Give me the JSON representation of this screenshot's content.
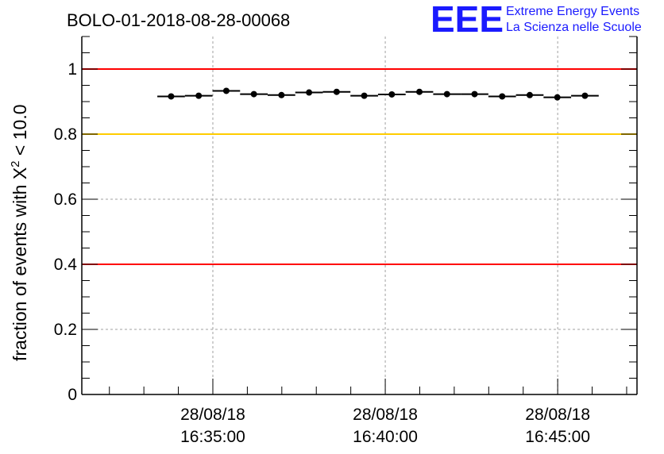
{
  "chart_data": {
    "type": "scatter",
    "title": "BOLO-01-2018-08-28-00068",
    "ylabel": {
      "prefix": "fraction of events with ",
      "symbol": "X",
      "superscript": "2",
      "suffix": " < 10.0"
    },
    "xlabel": "",
    "ylim": [
      0,
      1.1
    ],
    "xlim_minutes": [
      -3.8,
      12.3
    ],
    "grid": true,
    "x_ticks": [
      {
        "minute": 0,
        "date": "28/08/18",
        "time": "16:35:00"
      },
      {
        "minute": 5,
        "date": "28/08/18",
        "time": "16:40:00"
      },
      {
        "minute": 10,
        "date": "28/08/18",
        "time": "16:45:00"
      }
    ],
    "y_ticks": [
      {
        "value": 0,
        "label": "0"
      },
      {
        "value": 0.2,
        "label": "0.2"
      },
      {
        "value": 0.4,
        "label": "0.4"
      },
      {
        "value": 0.6,
        "label": "0.6"
      },
      {
        "value": 0.8,
        "label": "0.8"
      },
      {
        "value": 1.0,
        "label": "1"
      }
    ],
    "reference_lines": [
      {
        "value": 1.0,
        "color": "#ff0000"
      },
      {
        "value": 0.8,
        "color": "#ffcc00"
      },
      {
        "value": 0.4,
        "color": "#ff0000"
      }
    ],
    "bin_width_minutes": 0.8,
    "points": [
      {
        "time": "16:33:47",
        "minute": -1.21,
        "value": 0.916
      },
      {
        "time": "16:34:35",
        "minute": -0.41,
        "value": 0.918
      },
      {
        "time": "16:35:23",
        "minute": 0.39,
        "value": 0.933
      },
      {
        "time": "16:36:11",
        "minute": 1.19,
        "value": 0.923
      },
      {
        "time": "16:36:59",
        "minute": 1.99,
        "value": 0.92
      },
      {
        "time": "16:37:47",
        "minute": 2.79,
        "value": 0.928
      },
      {
        "time": "16:38:35",
        "minute": 3.59,
        "value": 0.93
      },
      {
        "time": "16:39:23",
        "minute": 4.39,
        "value": 0.918
      },
      {
        "time": "16:40:11",
        "minute": 5.19,
        "value": 0.922
      },
      {
        "time": "16:40:59",
        "minute": 5.99,
        "value": 0.93
      },
      {
        "time": "16:41:47",
        "minute": 6.79,
        "value": 0.923
      },
      {
        "time": "16:42:35",
        "minute": 7.59,
        "value": 0.923
      },
      {
        "time": "16:43:23",
        "minute": 8.39,
        "value": 0.916
      },
      {
        "time": "16:44:11",
        "minute": 9.19,
        "value": 0.92
      },
      {
        "time": "16:44:59",
        "minute": 9.99,
        "value": 0.913
      },
      {
        "time": "16:45:47",
        "minute": 10.79,
        "value": 0.918
      }
    ],
    "colors": {
      "points": "#000000",
      "grid": "#a0a0a0",
      "axis": "#000000"
    }
  },
  "logo": {
    "mark": "EEE",
    "line1": "Extreme Energy Events",
    "line2": "La Scienza nelle Scuole",
    "color": "#1a1aff"
  }
}
